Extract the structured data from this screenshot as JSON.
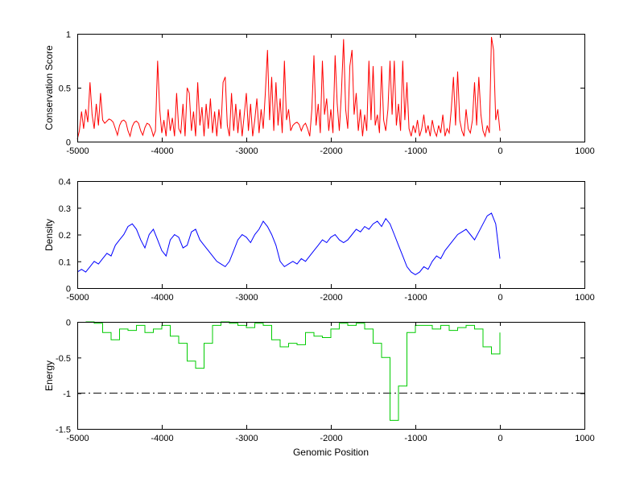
{
  "figure": {
    "background": "#ffffff",
    "xlabel": "Genomic Position",
    "xlim": [
      -5000,
      1000
    ],
    "x_ticks": [
      -5000,
      -4000,
      -3000,
      -2000,
      -1000,
      0,
      1000
    ],
    "grid": false,
    "legend": "none"
  },
  "chart_data": [
    {
      "type": "line",
      "name": "Conservation Score",
      "ylabel": "Conservation Score",
      "xlabel": "",
      "color": "#ff0000",
      "ylim": [
        0,
        1
      ],
      "yticks": [
        0,
        0.5,
        1
      ],
      "x_start": -5000,
      "x_step": 25,
      "values": [
        0.02,
        0.1,
        0.28,
        0.12,
        0.3,
        0.18,
        0.55,
        0.25,
        0.12,
        0.35,
        0.15,
        0.45,
        0.2,
        0.17,
        0.19,
        0.21,
        0.2,
        0.18,
        0.12,
        0.06,
        0.15,
        0.19,
        0.2,
        0.18,
        0.1,
        0.05,
        0.14,
        0.18,
        0.19,
        0.17,
        0.1,
        0.06,
        0.13,
        0.17,
        0.16,
        0.12,
        0.05,
        0.1,
        0.75,
        0.3,
        0.08,
        0.2,
        0.05,
        0.3,
        0.1,
        0.22,
        0.05,
        0.45,
        0.12,
        0.08,
        0.35,
        0.05,
        0.5,
        0.45,
        0.1,
        0.28,
        0.05,
        0.55,
        0.15,
        0.32,
        0.05,
        0.35,
        0.12,
        0.4,
        0.08,
        0.28,
        0.05,
        0.3,
        0.12,
        0.55,
        0.6,
        0.15,
        0.05,
        0.45,
        0.1,
        0.35,
        0.08,
        0.3,
        0.05,
        0.25,
        0.45,
        0.1,
        0.35,
        0.05,
        0.2,
        0.4,
        0.08,
        0.3,
        0.12,
        0.45,
        0.85,
        0.2,
        0.6,
        0.1,
        0.55,
        0.15,
        0.4,
        0.08,
        0.75,
        0.2,
        0.3,
        0.1,
        0.15,
        0.17,
        0.18,
        0.16,
        0.1,
        0.15,
        0.17,
        0.12,
        0.05,
        0.3,
        0.8,
        0.15,
        0.35,
        0.08,
        0.75,
        0.25,
        0.4,
        0.1,
        0.3,
        0.08,
        0.8,
        0.35,
        0.1,
        0.45,
        0.95,
        0.3,
        0.12,
        0.7,
        0.85,
        0.25,
        0.45,
        0.1,
        0.3,
        0.05,
        0.25,
        0.1,
        0.75,
        0.2,
        0.7,
        0.15,
        0.25,
        0.08,
        0.7,
        0.2,
        0.1,
        0.3,
        0.75,
        0.25,
        0.75,
        0.15,
        0.35,
        0.1,
        0.75,
        0.2,
        0.55,
        0.12,
        0.05,
        0.15,
        0.08,
        0.2,
        0.05,
        0.12,
        0.25,
        0.08,
        0.15,
        0.05,
        0.2,
        0.1,
        0.05,
        0.15,
        0.08,
        0.25,
        0.05,
        0.12,
        0.08,
        0.3,
        0.6,
        0.15,
        0.65,
        0.2,
        0.1,
        0.05,
        0.3,
        0.12,
        0.08,
        0.2,
        0.55,
        0.15,
        0.6,
        0.25,
        0.1,
        0.05,
        0.15,
        0.08,
        0.97,
        0.85,
        0.2,
        0.3,
        0.1
      ]
    },
    {
      "type": "line",
      "name": "Density",
      "ylabel": "Density",
      "xlabel": "",
      "color": "#0000ff",
      "ylim": [
        0,
        0.4
      ],
      "yticks": [
        0,
        0.1,
        0.2,
        0.3,
        0.4
      ],
      "x_start": -5000,
      "x_step": 50,
      "values": [
        0.06,
        0.07,
        0.06,
        0.08,
        0.1,
        0.09,
        0.11,
        0.13,
        0.12,
        0.16,
        0.18,
        0.2,
        0.23,
        0.24,
        0.22,
        0.18,
        0.15,
        0.2,
        0.22,
        0.18,
        0.14,
        0.12,
        0.18,
        0.2,
        0.19,
        0.15,
        0.16,
        0.21,
        0.22,
        0.18,
        0.16,
        0.14,
        0.12,
        0.1,
        0.09,
        0.08,
        0.1,
        0.14,
        0.18,
        0.2,
        0.19,
        0.17,
        0.2,
        0.22,
        0.25,
        0.23,
        0.2,
        0.16,
        0.1,
        0.08,
        0.09,
        0.1,
        0.09,
        0.11,
        0.1,
        0.12,
        0.14,
        0.16,
        0.18,
        0.17,
        0.19,
        0.2,
        0.18,
        0.17,
        0.18,
        0.2,
        0.22,
        0.21,
        0.23,
        0.22,
        0.24,
        0.25,
        0.23,
        0.26,
        0.24,
        0.2,
        0.16,
        0.12,
        0.08,
        0.06,
        0.05,
        0.06,
        0.08,
        0.07,
        0.1,
        0.12,
        0.11,
        0.14,
        0.16,
        0.18,
        0.2,
        0.21,
        0.22,
        0.2,
        0.18,
        0.21,
        0.24,
        0.27,
        0.28,
        0.24,
        0.11
      ]
    },
    {
      "type": "step",
      "name": "Energy",
      "ylabel": "Energy",
      "xlabel": "Genomic Position",
      "color": "#00cc00",
      "ylim": [
        -1.5,
        0
      ],
      "yticks": [
        -1.5,
        -1,
        -0.5,
        0
      ],
      "reference_line": {
        "y": -1,
        "style": "dash-dot",
        "color": "#000000"
      },
      "x_start": -4900,
      "x_step": 100,
      "values": [
        0,
        -0.02,
        -0.15,
        -0.25,
        -0.1,
        -0.12,
        -0.05,
        -0.15,
        -0.1,
        -0.05,
        -0.2,
        -0.3,
        -0.55,
        -0.65,
        -0.3,
        -0.05,
        0,
        -0.02,
        -0.05,
        -0.08,
        -0.02,
        -0.05,
        -0.25,
        -0.35,
        -0.3,
        -0.32,
        -0.15,
        -0.2,
        -0.22,
        -0.1,
        -0.02,
        -0.05,
        -0.02,
        -0.1,
        -0.3,
        -0.5,
        -1.38,
        -0.9,
        -0.15,
        -0.05,
        -0.05,
        -0.1,
        -0.05,
        -0.12,
        -0.08,
        -0.05,
        -0.1,
        -0.35,
        -0.45,
        -0.15
      ]
    }
  ]
}
